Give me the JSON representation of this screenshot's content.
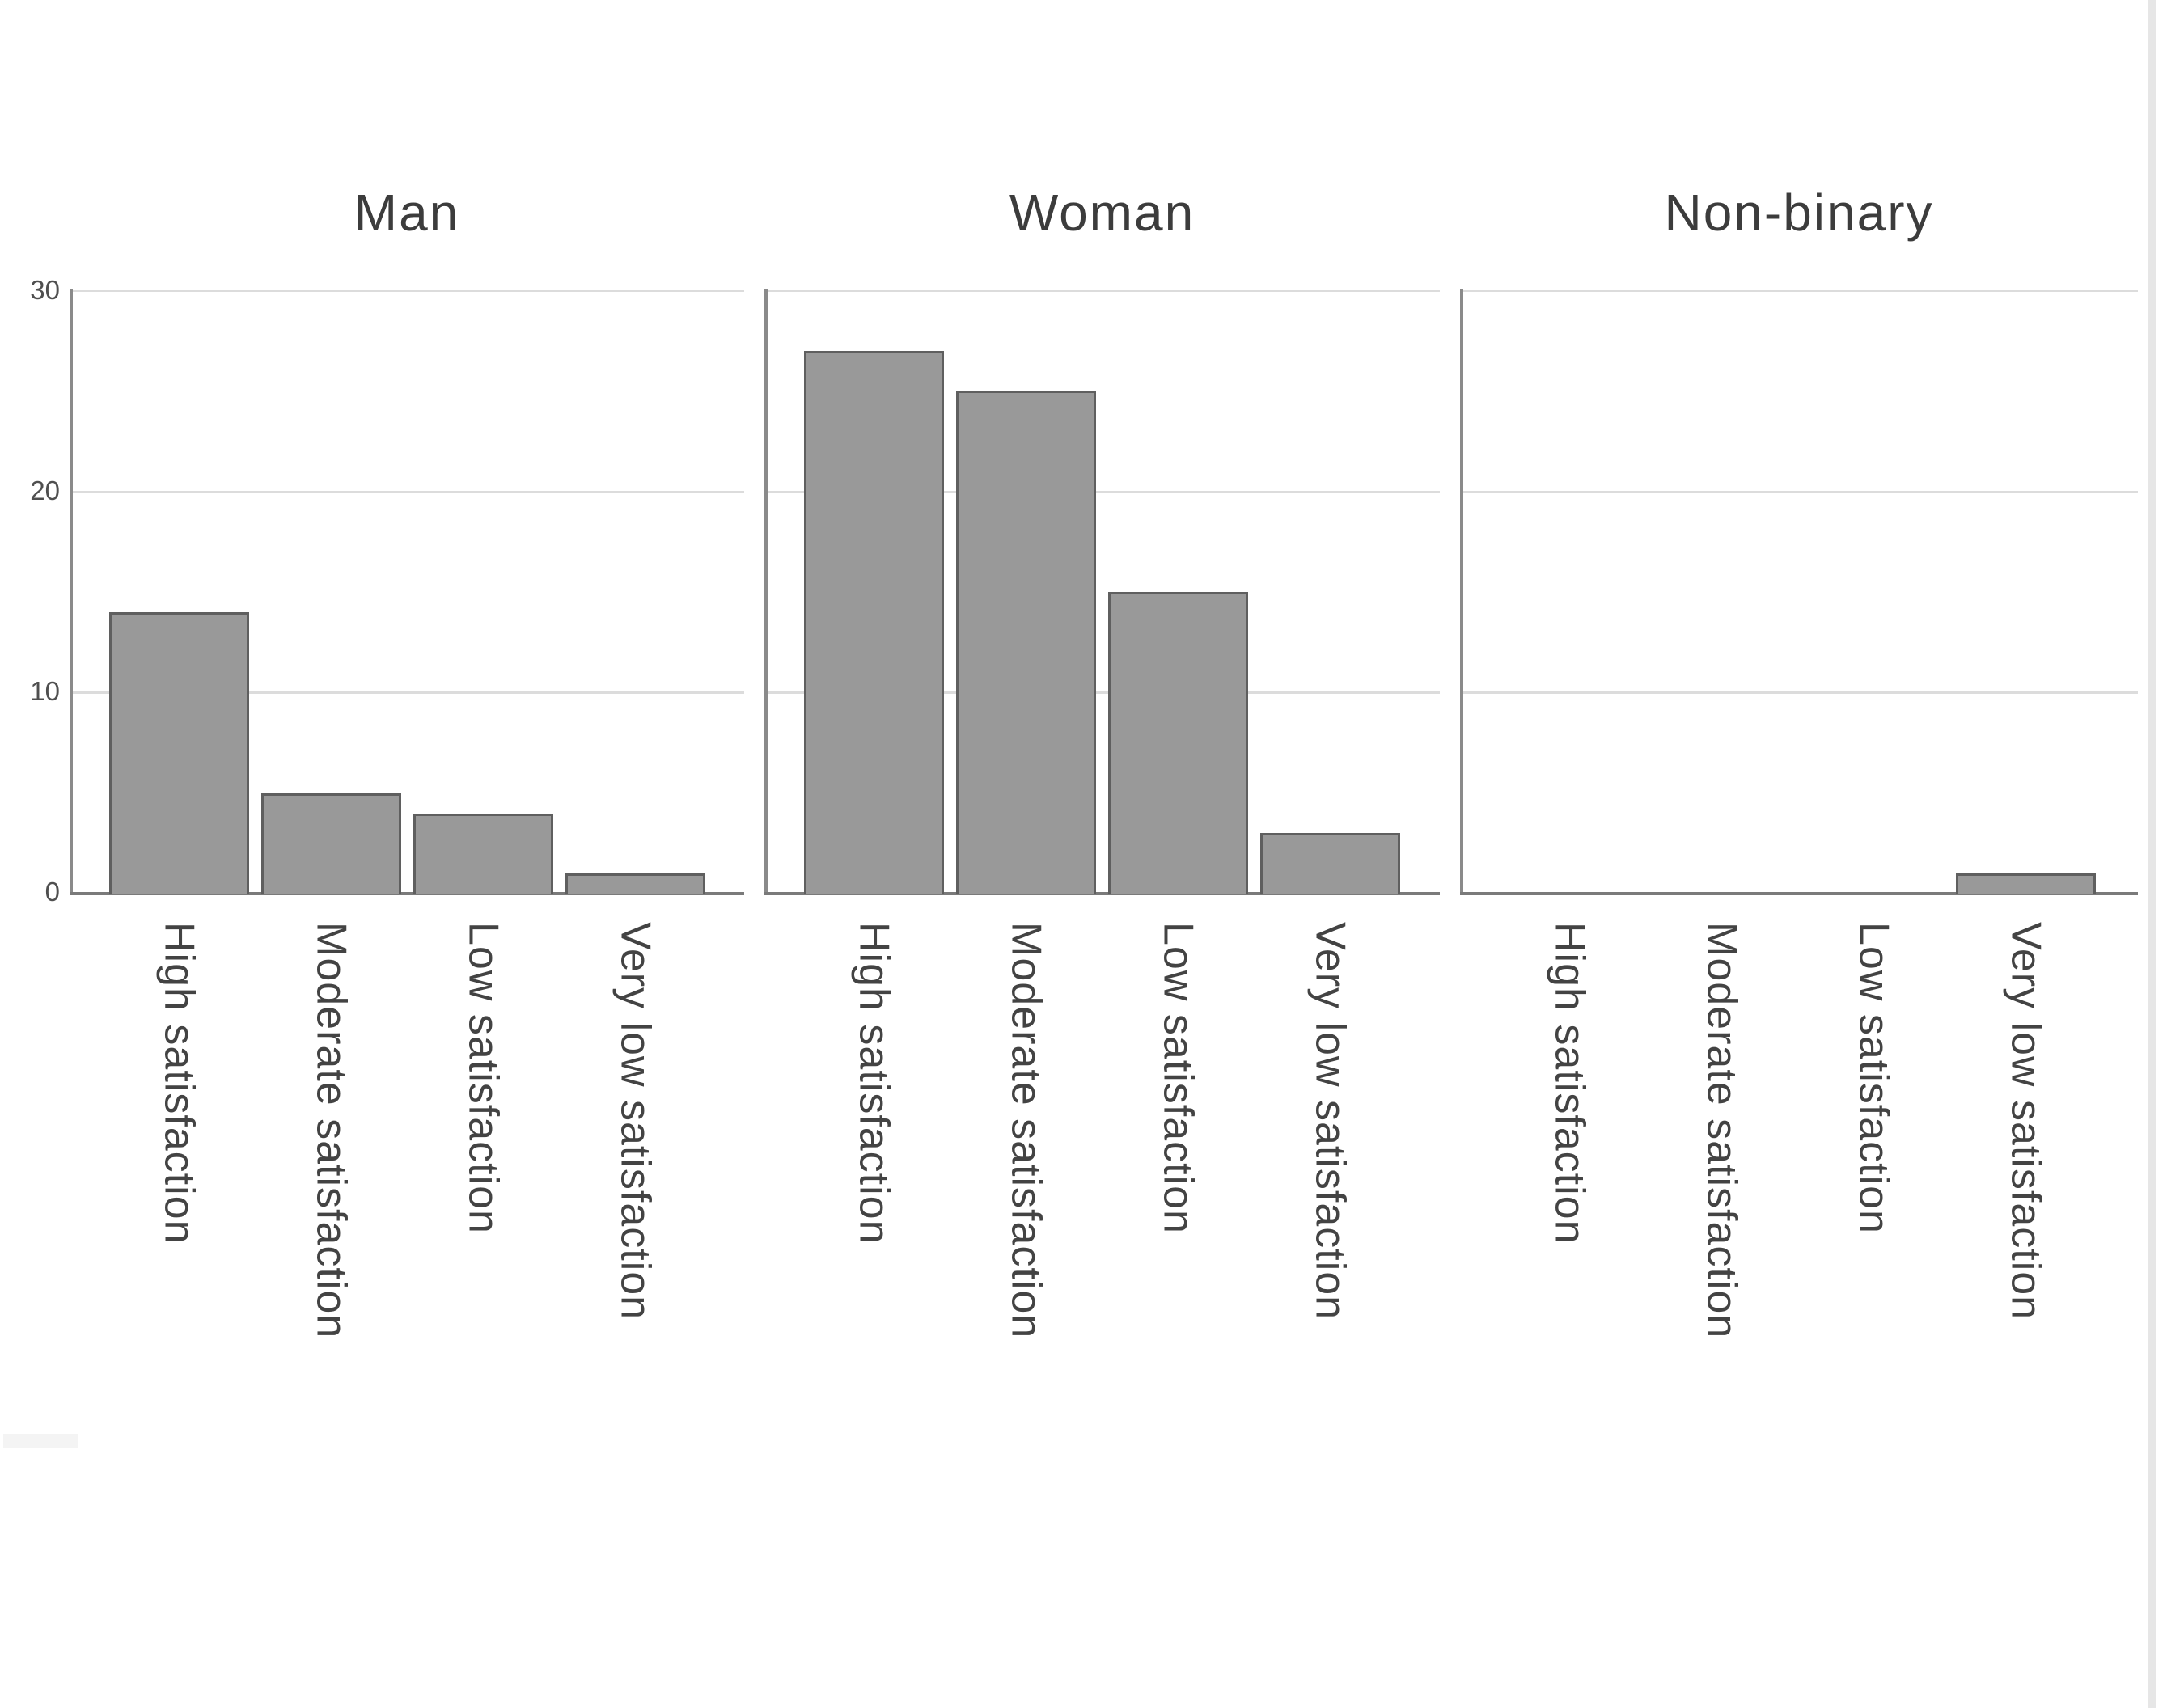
{
  "chart_data": {
    "type": "bar",
    "faceted": true,
    "facets": [
      {
        "title": "Man",
        "values": [
          14,
          5,
          4,
          1
        ]
      },
      {
        "title": "Woman",
        "values": [
          27,
          25,
          15,
          3
        ]
      },
      {
        "title": "Non-binary",
        "values": [
          0,
          0,
          0,
          1
        ]
      }
    ],
    "categories": [
      "High satisfaction",
      "Moderate satisfaction",
      "Low satisfaction",
      "Very low satisfaction"
    ],
    "y_ticks": [
      "30",
      "20",
      "10",
      "0"
    ],
    "y_tick_values": [
      30,
      20,
      10,
      0
    ],
    "ylim": [
      0,
      30
    ],
    "grid": "horizontal",
    "legend_position": "none",
    "xlabel": "",
    "ylabel": "",
    "x_label_rotation_deg": 90
  },
  "colors": {
    "bar_fill": "#999999",
    "bar_border": "#5f5f5f",
    "gridline": "#dcdcdc",
    "axis_line_y": "#8a8a8a",
    "axis_line_x": "#7a7a7a",
    "title_text": "#3c3c3c",
    "tick_text": "#4f4f4f",
    "category_text": "#434343",
    "background": "#ffffff"
  }
}
